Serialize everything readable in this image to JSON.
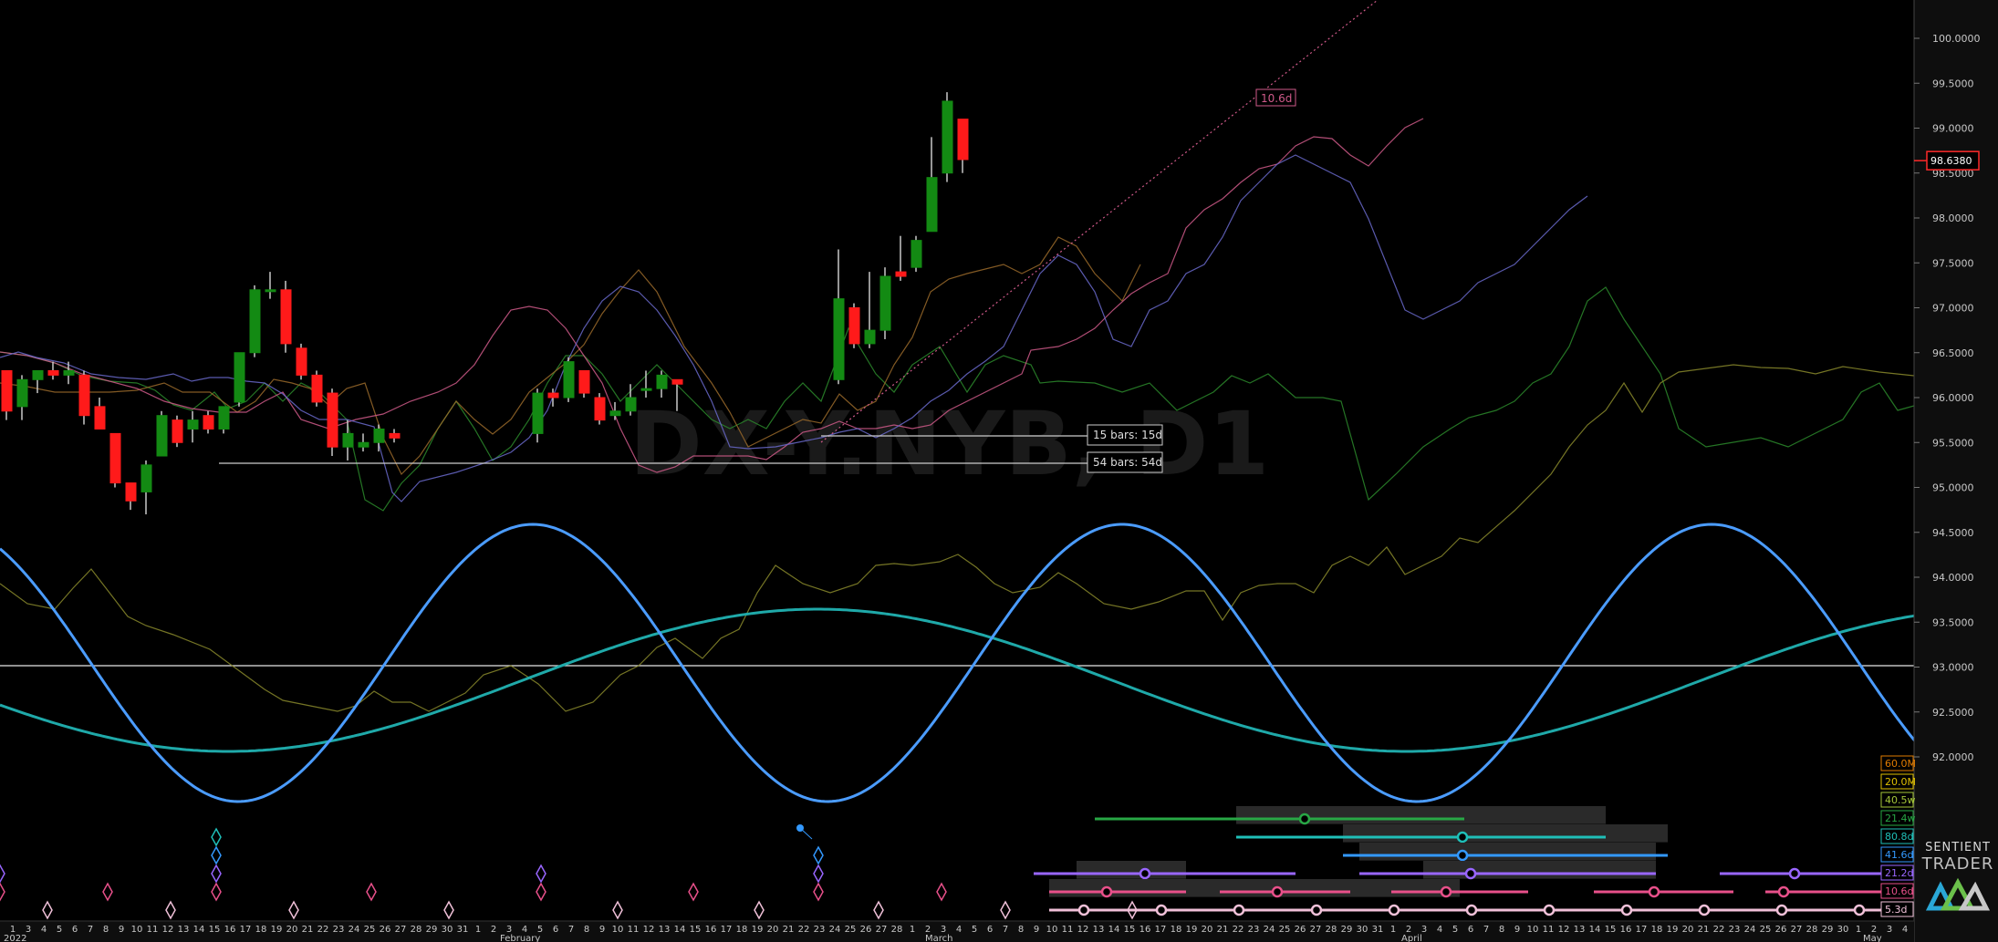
{
  "chart_data": {
    "type": "candlestick",
    "watermark": "DX-Y.NYB, D1",
    "ylim": [
      91.5,
      100.3
    ],
    "y_ticks": [
      "100.0000",
      "99.5000",
      "99.0000",
      "98.5000",
      "98.0000",
      "97.5000",
      "97.0000",
      "96.5000",
      "96.0000",
      "95.5000",
      "95.0000",
      "94.5000",
      "94.0000",
      "93.5000",
      "93.0000",
      "92.5000",
      "92.0000"
    ],
    "current_price": "98.6380",
    "candles": [
      {
        "o": 96.3,
        "h": 96.3,
        "l": 95.75,
        "c": 95.85
      },
      {
        "o": 95.9,
        "h": 96.25,
        "l": 95.75,
        "c": 96.2
      },
      {
        "o": 96.2,
        "h": 96.3,
        "l": 96.05,
        "c": 96.3
      },
      {
        "o": 96.3,
        "h": 96.4,
        "l": 96.2,
        "c": 96.25
      },
      {
        "o": 96.25,
        "h": 96.4,
        "l": 96.15,
        "c": 96.3
      },
      {
        "o": 96.25,
        "h": 96.3,
        "l": 95.7,
        "c": 95.8
      },
      {
        "o": 95.9,
        "h": 96.0,
        "l": 95.65,
        "c": 95.65
      },
      {
        "o": 95.6,
        "h": 95.6,
        "l": 95.0,
        "c": 95.05
      },
      {
        "o": 95.05,
        "h": 95.05,
        "l": 94.75,
        "c": 94.85
      },
      {
        "o": 94.95,
        "h": 95.3,
        "l": 94.7,
        "c": 95.25
      },
      {
        "o": 95.35,
        "h": 95.85,
        "l": 95.35,
        "c": 95.8
      },
      {
        "o": 95.75,
        "h": 95.8,
        "l": 95.45,
        "c": 95.5
      },
      {
        "o": 95.65,
        "h": 95.85,
        "l": 95.5,
        "c": 95.75
      },
      {
        "o": 95.8,
        "h": 95.85,
        "l": 95.6,
        "c": 95.65
      },
      {
        "o": 95.65,
        "h": 95.9,
        "l": 95.6,
        "c": 95.9
      },
      {
        "o": 95.95,
        "h": 96.5,
        "l": 95.9,
        "c": 96.5
      },
      {
        "o": 96.5,
        "h": 97.25,
        "l": 96.45,
        "c": 97.2
      },
      {
        "o": 97.2,
        "h": 97.4,
        "l": 97.1,
        "c": 97.2
      },
      {
        "o": 97.2,
        "h": 97.3,
        "l": 96.5,
        "c": 96.6
      },
      {
        "o": 96.55,
        "h": 96.6,
        "l": 96.2,
        "c": 96.25
      },
      {
        "o": 96.25,
        "h": 96.3,
        "l": 95.9,
        "c": 95.95
      },
      {
        "o": 96.05,
        "h": 96.1,
        "l": 95.35,
        "c": 95.45
      },
      {
        "o": 95.45,
        "h": 95.75,
        "l": 95.3,
        "c": 95.6
      },
      {
        "o": 95.45,
        "h": 95.6,
        "l": 95.4,
        "c": 95.5
      },
      {
        "o": 95.5,
        "h": 95.7,
        "l": 95.4,
        "c": 95.65
      },
      {
        "o": 95.6,
        "h": 95.65,
        "l": 95.5,
        "c": 95.55
      },
      {
        "o": 95.6,
        "h": 96.1,
        "l": 95.5,
        "c": 96.05
      },
      {
        "o": 96.05,
        "h": 96.1,
        "l": 95.9,
        "c": 96.0
      },
      {
        "o": 96.0,
        "h": 96.45,
        "l": 95.95,
        "c": 96.4
      },
      {
        "o": 96.3,
        "h": 96.3,
        "l": 96.0,
        "c": 96.05
      },
      {
        "o": 96.0,
        "h": 96.05,
        "l": 95.7,
        "c": 95.75
      },
      {
        "o": 95.8,
        "h": 95.95,
        "l": 95.75,
        "c": 95.85
      },
      {
        "o": 95.85,
        "h": 96.15,
        "l": 95.8,
        "c": 96.0
      },
      {
        "o": 96.1,
        "h": 96.3,
        "l": 96.0,
        "c": 96.1
      },
      {
        "o": 96.1,
        "h": 96.3,
        "l": 96.0,
        "c": 96.25
      },
      {
        "o": 96.2,
        "h": 96.2,
        "l": 95.85,
        "c": 96.15
      },
      {
        "o": 96.2,
        "h": 97.65,
        "l": 96.15,
        "c": 97.1
      },
      {
        "o": 97.0,
        "h": 97.05,
        "l": 96.55,
        "c": 96.6
      },
      {
        "o": 96.6,
        "h": 97.4,
        "l": 96.55,
        "c": 96.75
      },
      {
        "o": 96.75,
        "h": 97.45,
        "l": 96.65,
        "c": 97.35
      },
      {
        "o": 97.4,
        "h": 97.8,
        "l": 97.3,
        "c": 97.35
      },
      {
        "o": 97.45,
        "h": 97.8,
        "l": 97.4,
        "c": 97.75
      },
      {
        "o": 97.85,
        "h": 98.9,
        "l": 97.85,
        "c": 98.45
      },
      {
        "o": 98.5,
        "h": 99.4,
        "l": 98.4,
        "c": 99.3
      },
      {
        "o": 99.1,
        "h": 99.1,
        "l": 98.5,
        "c": 98.65
      }
    ],
    "date_labels": [
      "1",
      "3",
      "4",
      "5",
      "6",
      "7",
      "8",
      "9",
      "10",
      "11",
      "12",
      "13",
      "14",
      "15",
      "16",
      "17",
      "18",
      "19",
      "20",
      "21",
      "22",
      "23",
      "24",
      "25",
      "26",
      "27",
      "28",
      "29",
      "30",
      "31",
      "1",
      "2",
      "3",
      "4",
      "5",
      "6",
      "7",
      "8",
      "9",
      "10",
      "11",
      "12",
      "13",
      "14",
      "15",
      "16",
      "17",
      "18",
      "19",
      "20",
      "21",
      "22",
      "23",
      "24",
      "25",
      "26",
      "27",
      "28",
      "1",
      "2",
      "3",
      "4",
      "5",
      "6",
      "7",
      "8",
      "9",
      "10",
      "11",
      "12",
      "13",
      "14",
      "15",
      "16",
      "17",
      "18",
      "19",
      "20",
      "21",
      "22",
      "23",
      "24",
      "25",
      "26",
      "27",
      "28",
      "29",
      "30",
      "31",
      "1",
      "2",
      "3",
      "4",
      "5",
      "6",
      "7",
      "8",
      "9",
      "10",
      "11",
      "12",
      "13",
      "14",
      "15",
      "16",
      "17",
      "18",
      "19",
      "20",
      "21",
      "22",
      "23",
      "24",
      "25",
      "26",
      "27",
      "28",
      "29",
      "30",
      "1",
      "2",
      "3",
      "4"
    ],
    "month_labels": [
      "2022",
      "February",
      "March",
      "April",
      "May"
    ],
    "annotations": [
      "15 bars: 15d",
      "54 bars: 54d",
      "10.6d"
    ],
    "cycle_legend": [
      {
        "label": "60.0M",
        "color": "#e07b00"
      },
      {
        "label": "20.0M",
        "color": "#e0c000"
      },
      {
        "label": "40.5w",
        "color": "#a4c639"
      },
      {
        "label": "21.4w",
        "color": "#28a745"
      },
      {
        "label": "80.8d",
        "color": "#1fbfb8"
      },
      {
        "label": "41.6d",
        "color": "#3399ff"
      },
      {
        "label": "21.2d",
        "color": "#9966ff"
      },
      {
        "label": "10.6d",
        "color": "#e8508a"
      },
      {
        "label": "5.3d",
        "color": "#f0c0d8"
      }
    ],
    "colors": {
      "up": "#138a13",
      "down": "#ff1a1a",
      "wave41": "#4b9cff",
      "wave80": "#1fa9a9",
      "bg": "#000000"
    }
  },
  "branding": {
    "line1": "SENTIENT",
    "line2": "TRADER"
  }
}
